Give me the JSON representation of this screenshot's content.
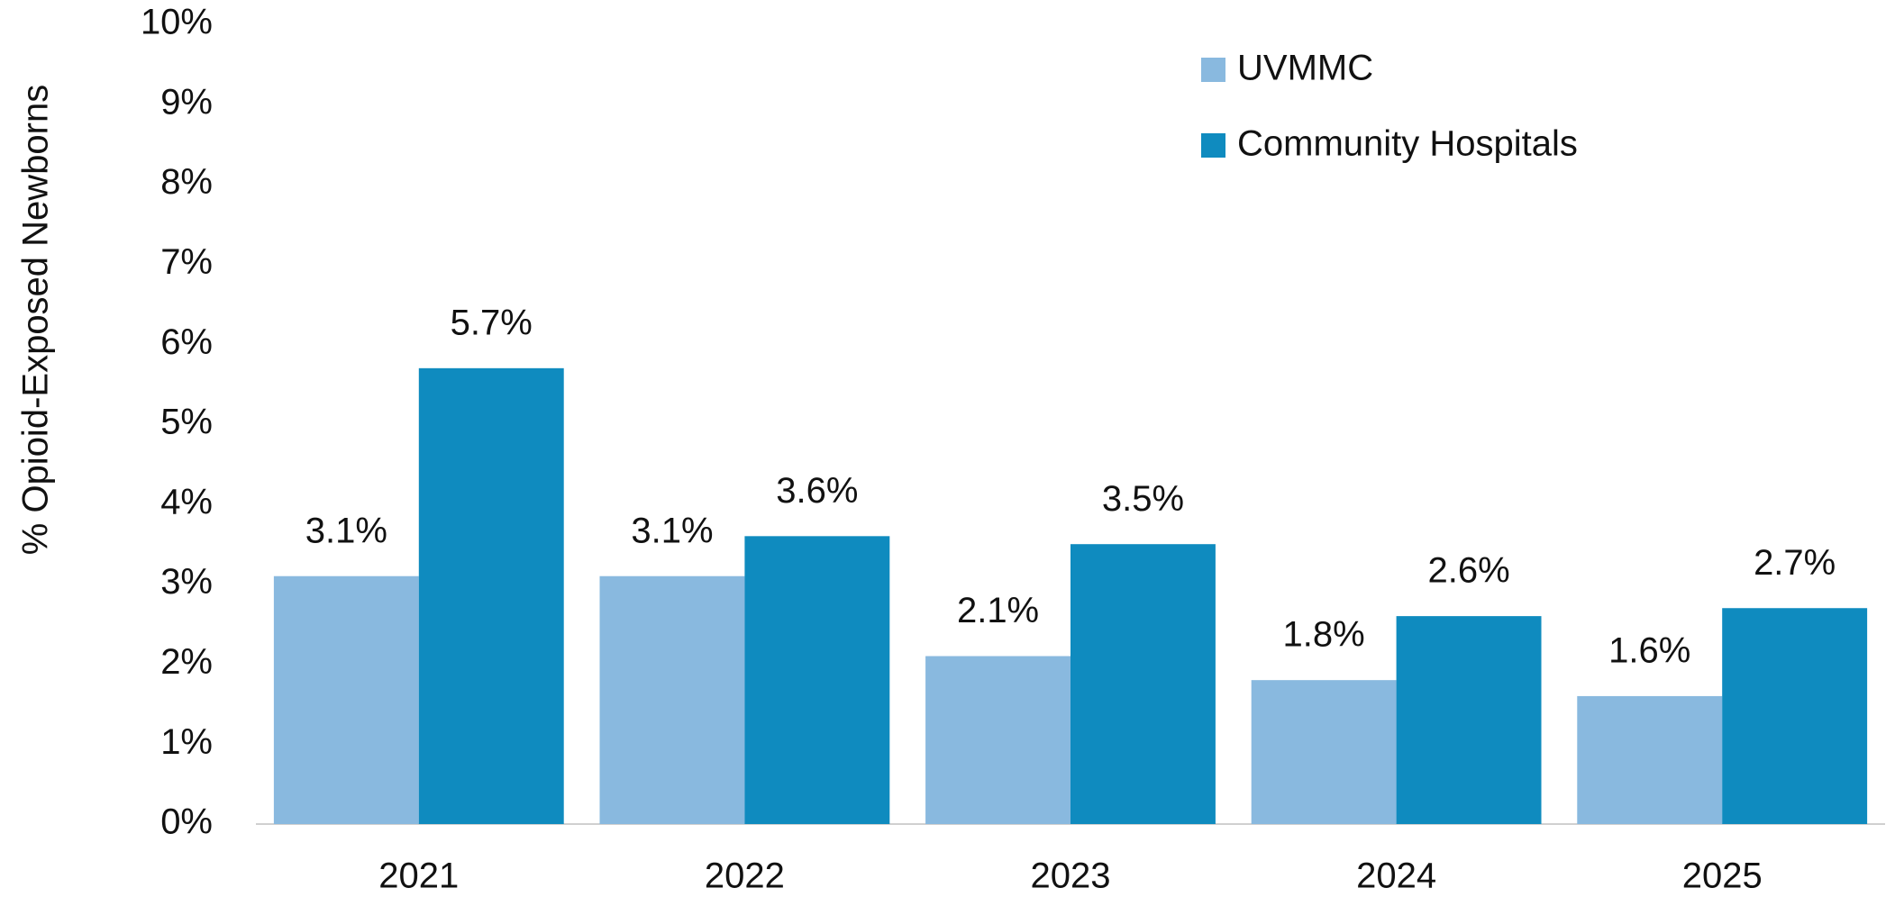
{
  "chart_data": {
    "type": "bar",
    "y_label": "% Opioid-Exposed Newborns",
    "categories": [
      "2021",
      "2022",
      "2023",
      "2024",
      "2025"
    ],
    "series": [
      {
        "name": "UVMMC",
        "color": "#89b9df",
        "values": [
          3.1,
          3.1,
          2.1,
          1.8,
          1.6
        ],
        "value_labels": [
          "3.1%",
          "3.1%",
          "2.1%",
          "1.8%",
          "1.6%"
        ]
      },
      {
        "name": "Community Hospitals",
        "color": "#0f8bbf",
        "values": [
          5.7,
          3.6,
          3.5,
          2.6,
          2.7
        ],
        "value_labels": [
          "5.7%",
          "3.6%",
          "3.5%",
          "2.6%",
          "2.7%"
        ]
      }
    ],
    "ylim": [
      0,
      10
    ],
    "yticks": [
      {
        "value": 0,
        "label": "0%"
      },
      {
        "value": 1,
        "label": "1%"
      },
      {
        "value": 2,
        "label": "2%"
      },
      {
        "value": 3,
        "label": "3%"
      },
      {
        "value": 4,
        "label": "4%"
      },
      {
        "value": 5,
        "label": "5%"
      },
      {
        "value": 6,
        "label": "6%"
      },
      {
        "value": 7,
        "label": "7%"
      },
      {
        "value": 8,
        "label": "8%"
      },
      {
        "value": 9,
        "label": "9%"
      },
      {
        "value": 10,
        "label": "10%"
      }
    ],
    "grid": false,
    "legend": "top-right"
  }
}
